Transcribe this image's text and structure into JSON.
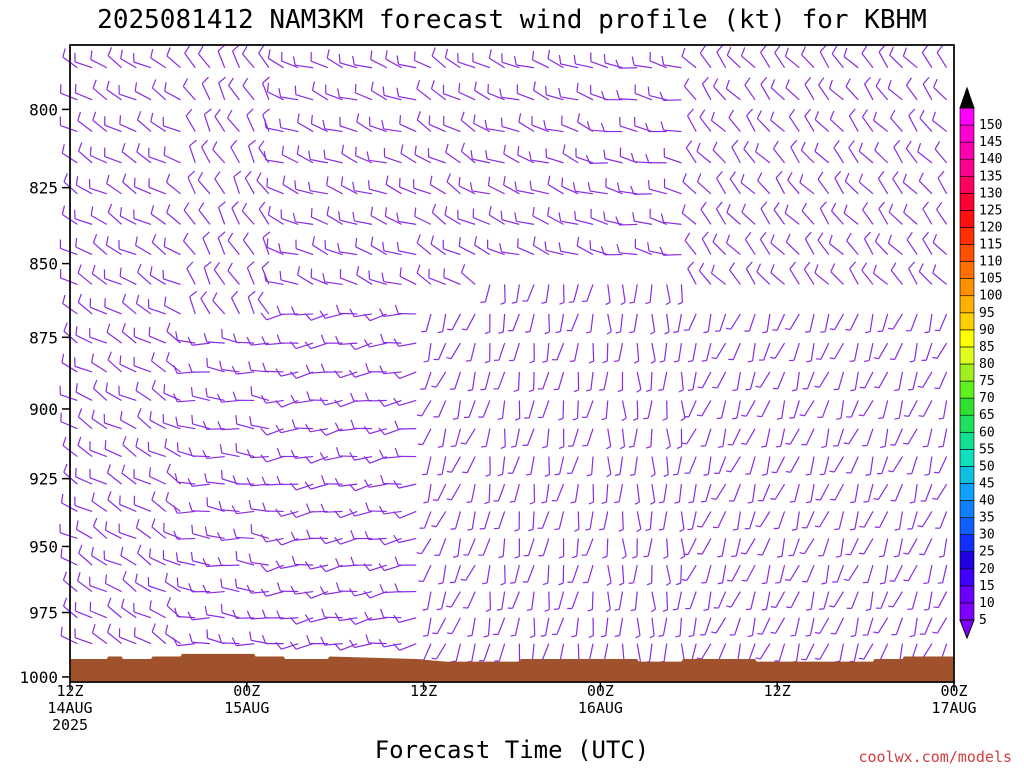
{
  "chart_data": {
    "type": "wind-barb-time-height",
    "title": "2025081412 NAM3KM forecast wind profile (kt) for KBHM",
    "xlabel": "Forecast Time (UTC)",
    "ylabel": "",
    "y_ticks": [
      "800",
      "825",
      "850",
      "875",
      "900",
      "925",
      "950",
      "975",
      "1000"
    ],
    "y_tick_values": [
      800,
      825,
      850,
      875,
      900,
      925,
      950,
      975,
      1000
    ],
    "ylim": [
      780,
      1002
    ],
    "xlim_hours": [
      0,
      60
    ],
    "x_ticks": [
      {
        "hour": 0,
        "lines": [
          "12Z",
          "14AUG",
          "2025"
        ]
      },
      {
        "hour": 12,
        "lines": [
          "00Z",
          "15AUG"
        ]
      },
      {
        "hour": 24,
        "lines": [
          "12Z"
        ]
      },
      {
        "hour": 36,
        "lines": [
          "00Z",
          "16AUG"
        ]
      },
      {
        "hour": 48,
        "lines": [
          "12Z"
        ]
      },
      {
        "hour": 60,
        "lines": [
          "00Z",
          "17AUG"
        ]
      }
    ],
    "barb_color": "#8a2be2",
    "ground_color": "#a0522d",
    "surface_pressure": [
      {
        "hour": 0,
        "p": 993
      },
      {
        "hour": 2.5,
        "p": 993
      },
      {
        "hour": 2.6,
        "p": 992
      },
      {
        "hour": 3.5,
        "p": 992
      },
      {
        "hour": 3.6,
        "p": 993
      },
      {
        "hour": 5.5,
        "p": 993
      },
      {
        "hour": 5.6,
        "p": 992
      },
      {
        "hour": 7.5,
        "p": 992
      },
      {
        "hour": 7.6,
        "p": 991
      },
      {
        "hour": 12.5,
        "p": 991
      },
      {
        "hour": 12.6,
        "p": 992
      },
      {
        "hour": 14.5,
        "p": 992
      },
      {
        "hour": 14.6,
        "p": 993
      },
      {
        "hour": 17.5,
        "p": 993
      },
      {
        "hour": 17.6,
        "p": 992
      },
      {
        "hour": 23.5,
        "p": 993
      },
      {
        "hour": 25.5,
        "p": 994
      },
      {
        "hour": 30.5,
        "p": 994
      },
      {
        "hour": 30.6,
        "p": 993
      },
      {
        "hour": 38.5,
        "p": 993
      },
      {
        "hour": 38.6,
        "p": 994
      },
      {
        "hour": 41.5,
        "p": 994
      },
      {
        "hour": 41.6,
        "p": 993
      },
      {
        "hour": 46.5,
        "p": 993
      },
      {
        "hour": 46.6,
        "p": 994
      },
      {
        "hour": 54.5,
        "p": 994
      },
      {
        "hour": 54.6,
        "p": 993
      },
      {
        "hour": 56.5,
        "p": 993
      },
      {
        "hour": 56.6,
        "p": 992
      },
      {
        "hour": 60,
        "p": 992
      }
    ],
    "colorbar": {
      "labels": [
        "5",
        "10",
        "15",
        "20",
        "25",
        "30",
        "35",
        "40",
        "45",
        "50",
        "55",
        "60",
        "65",
        "70",
        "75",
        "80",
        "85",
        "90",
        "95",
        "100",
        "105",
        "110",
        "115",
        "120",
        "125",
        "130",
        "135",
        "140",
        "145",
        "150"
      ],
      "colors": [
        "#8000ff",
        "#6a00ff",
        "#4000ff",
        "#2000e0",
        "#1030ff",
        "#1060ff",
        "#1080ff",
        "#10a0ff",
        "#10c0e0",
        "#10e0c0",
        "#10e090",
        "#20e060",
        "#30e030",
        "#60f020",
        "#a0f020",
        "#e0ff20",
        "#ffff00",
        "#ffd000",
        "#ffb000",
        "#ff9000",
        "#ff7000",
        "#ff5000",
        "#ff3000",
        "#ff1010",
        "#ff0030",
        "#ff0060",
        "#ff0090",
        "#ff00b0",
        "#ff00d0",
        "#ff00ff"
      ]
    },
    "wind_regimes": [
      {
        "from_hour": 0,
        "to_hour": 8,
        "p_top": 780,
        "p_bottom": 1000,
        "dir_deg": 300,
        "speed_kt": 10
      },
      {
        "from_hour": 8,
        "to_hour": 14,
        "p_top": 780,
        "p_bottom": 870,
        "dir_deg": 330,
        "speed_kt": 10
      },
      {
        "from_hour": 8,
        "to_hour": 14,
        "p_top": 870,
        "p_bottom": 1000,
        "dir_deg": 275,
        "speed_kt": 10
      },
      {
        "from_hour": 14,
        "to_hour": 24,
        "p_top": 780,
        "p_bottom": 860,
        "dir_deg": 290,
        "speed_kt": 10
      },
      {
        "from_hour": 14,
        "to_hour": 24,
        "p_top": 860,
        "p_bottom": 1000,
        "dir_deg": 260,
        "speed_kt": 10
      },
      {
        "from_hour": 24,
        "to_hour": 28,
        "p_top": 780,
        "p_bottom": 860,
        "dir_deg": 300,
        "speed_kt": 10
      },
      {
        "from_hour": 24,
        "to_hour": 28,
        "p_top": 860,
        "p_bottom": 1000,
        "dir_deg": 200,
        "speed_kt": 5
      },
      {
        "from_hour": 28,
        "to_hour": 36,
        "p_top": 780,
        "p_bottom": 850,
        "dir_deg": 290,
        "speed_kt": 10
      },
      {
        "from_hour": 28,
        "to_hour": 36,
        "p_top": 850,
        "p_bottom": 1000,
        "dir_deg": 190,
        "speed_kt": 5
      },
      {
        "from_hour": 36,
        "to_hour": 42,
        "p_top": 780,
        "p_bottom": 850,
        "dir_deg": 280,
        "speed_kt": 10
      },
      {
        "from_hour": 36,
        "to_hour": 42,
        "p_top": 850,
        "p_bottom": 1000,
        "dir_deg": 180,
        "speed_kt": 5
      },
      {
        "from_hour": 42,
        "to_hour": 60,
        "p_top": 780,
        "p_bottom": 860,
        "dir_deg": 320,
        "speed_kt": 10
      },
      {
        "from_hour": 42,
        "to_hour": 60,
        "p_top": 860,
        "p_bottom": 1000,
        "dir_deg": 200,
        "speed_kt": 5
      }
    ]
  },
  "credit": "coolwx.com/models"
}
